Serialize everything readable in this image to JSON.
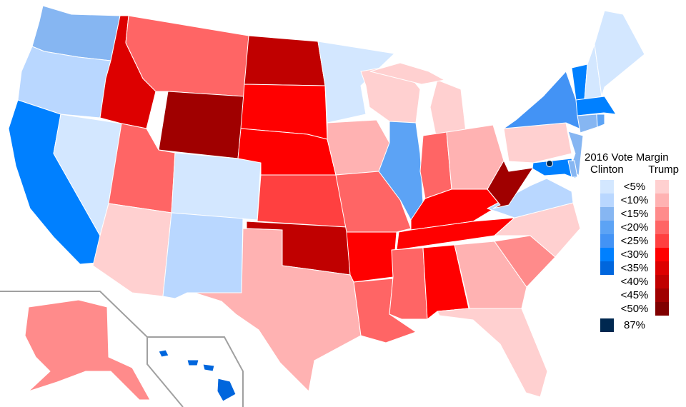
{
  "legend": {
    "title": "2016 Vote Margin",
    "left_label": "Clinton",
    "right_label": "Trump",
    "rows": [
      {
        "label": "<5%",
        "clinton": "#D3E7FF",
        "trump": "#FFD0D0"
      },
      {
        "label": "<10%",
        "clinton": "#B9D7FF",
        "trump": "#FFB2B2"
      },
      {
        "label": "<15%",
        "clinton": "#86B6F2",
        "trump": "#FF8B8B"
      },
      {
        "label": "<20%",
        "clinton": "#5CA3F5",
        "trump": "#FF6565"
      },
      {
        "label": "<25%",
        "clinton": "#4393F5",
        "trump": "#FF4040"
      },
      {
        "label": "<30%",
        "clinton": "#0080FF",
        "trump": "#FF0000"
      },
      {
        "label": "<35%",
        "clinton": "#0066DD",
        "trump": "#DD0000"
      },
      {
        "label": "<40%",
        "clinton": null,
        "trump": "#C00000"
      },
      {
        "label": "<45%",
        "clinton": null,
        "trump": "#A00000"
      },
      {
        "label": "<50%",
        "clinton": null,
        "trump": "#800000"
      }
    ],
    "extra": {
      "label": "87%",
      "color": "#002850"
    }
  },
  "state_fills": {
    "WA": "D15",
    "OR": "D10",
    "CA": "D30",
    "NV": "D5",
    "ID": "R35",
    "MT": "R20",
    "WY": "R45",
    "UT": "R20",
    "CO": "D5",
    "AZ": "R5",
    "NM": "D10",
    "ND": "R40",
    "SD": "R30",
    "NE": "R30",
    "KS": "R25",
    "OK": "R40",
    "TX": "R10",
    "MN": "D5",
    "IA": "R10",
    "MO": "R20",
    "AR": "R30",
    "LA": "R20",
    "WI": "R5",
    "IL": "D20",
    "MI": "R5",
    "IN": "R20",
    "OH": "R10",
    "KY": "R30",
    "TN": "R30",
    "MS": "R20",
    "AL": "R30",
    "GA": "R10",
    "FL": "R5",
    "SC": "R15",
    "NC": "R5",
    "VA": "D10",
    "WV": "R45",
    "PA": "R5",
    "NY": "D25",
    "NJ": "D15",
    "MD": "D30",
    "DE": "D15",
    "VT": "D30",
    "NH": "D5",
    "ME": "D5",
    "MA": "D30",
    "CT": "D15",
    "RI": "D20",
    "AK": "R15",
    "HI": "D35",
    "DC": "X87"
  },
  "inset_border_color": "#A0A0A0"
}
